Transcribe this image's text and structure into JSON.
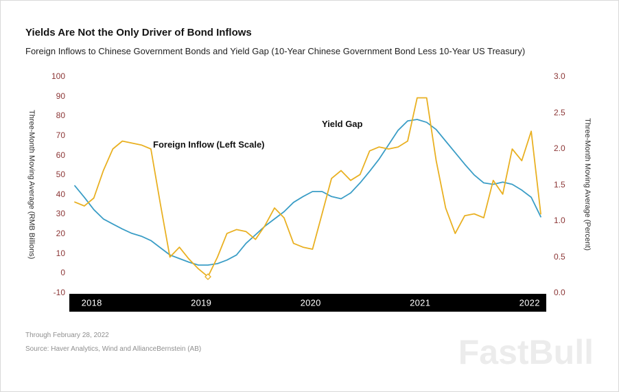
{
  "header": {
    "title": "Yields Are Not the Only Driver of Bond Inflows",
    "subtitle": "Foreign Inflows to Chinese Government Bonds and Yield Gap (10-Year Chinese Government Bond Less 10-Year US Treasury)"
  },
  "chart_data": {
    "type": "line",
    "x_unit": "month",
    "x_start": "2018-01",
    "x_end": "2022-02",
    "x_axis": {
      "year_labels": [
        "2018",
        "2019",
        "2020",
        "2021",
        "2022"
      ]
    },
    "left_axis": {
      "title": "Three-Month Moving Average (RMB Billions)",
      "min": -10,
      "max": 100,
      "ticks": [
        100,
        90,
        80,
        70,
        60,
        50,
        40,
        30,
        20,
        10,
        0,
        -10
      ]
    },
    "right_axis": {
      "title": "Three-Month Moving Average (Percent)",
      "min": 0,
      "max": 3,
      "ticks": [
        "3.0",
        "2.5",
        "2.0",
        "1.5",
        "1.0",
        "0.5",
        "0.0"
      ]
    },
    "series": [
      {
        "name": "Foreign Inflow (Left Scale)",
        "axis": "left",
        "color": "#E9B021",
        "min_marker": true,
        "values": [
          36,
          34,
          38,
          52,
          63,
          67,
          66,
          65,
          63,
          35,
          8,
          13,
          7,
          2,
          -2,
          8,
          20,
          22,
          21,
          17,
          24,
          33,
          28,
          15,
          13,
          12,
          30,
          48,
          52,
          47,
          50,
          62,
          64,
          63,
          64,
          67,
          89,
          89,
          57,
          33,
          20,
          29,
          30,
          28,
          47,
          40,
          63,
          57,
          72,
          30
        ]
      },
      {
        "name": "Yield Gap",
        "axis": "right",
        "color": "#3A9DC6",
        "min_marker": false,
        "values": [
          1.48,
          1.32,
          1.15,
          1.02,
          0.95,
          0.88,
          0.82,
          0.78,
          0.72,
          0.62,
          0.52,
          0.47,
          0.42,
          0.38,
          0.38,
          0.4,
          0.45,
          0.52,
          0.68,
          0.8,
          0.92,
          1.02,
          1.12,
          1.25,
          1.33,
          1.4,
          1.4,
          1.33,
          1.3,
          1.38,
          1.52,
          1.68,
          1.85,
          2.05,
          2.25,
          2.38,
          2.4,
          2.36,
          2.26,
          2.1,
          1.94,
          1.78,
          1.63,
          1.52,
          1.5,
          1.53,
          1.5,
          1.42,
          1.32,
          1.05
        ]
      }
    ],
    "legend_position": "in-plot annotations",
    "grid": false
  },
  "footer": {
    "through": "Through February 28, 2022",
    "source": "Source: Haver Analytics, Wind and AllianceBernstein (AB)"
  },
  "watermark": {
    "text": "FastBull"
  }
}
